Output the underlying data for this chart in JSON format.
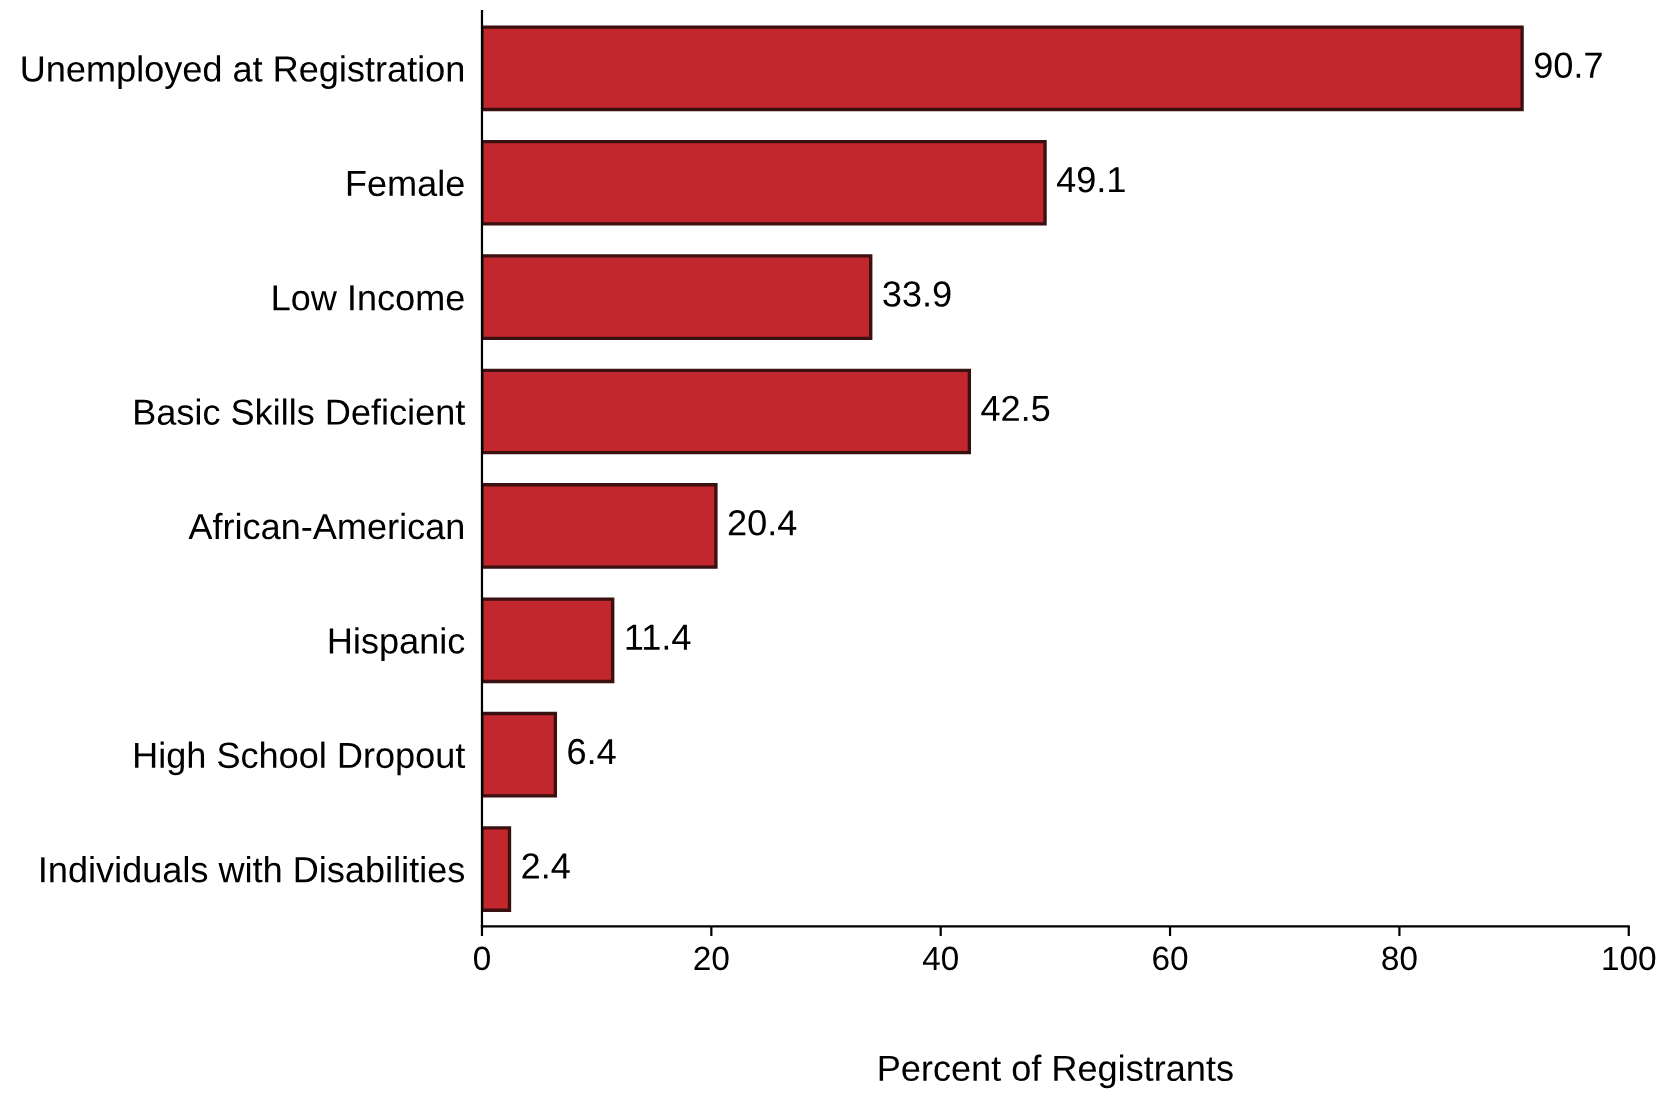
{
  "chart_data": {
    "type": "bar",
    "orientation": "horizontal",
    "xlabel": "Percent of Registrants",
    "categories": [
      "Unemployed at Registration",
      "Female",
      "Low Income",
      "Basic Skills Deficient",
      "African-American",
      "Hispanic",
      "High School Dropout",
      "Individuals with Disabilities"
    ],
    "values": [
      90.7,
      49.1,
      33.9,
      42.5,
      20.4,
      11.4,
      6.4,
      2.4
    ],
    "color": "#c1272d",
    "xlim": [
      0,
      100
    ],
    "xticks": [
      0,
      20,
      40,
      60,
      80,
      100
    ],
    "data_labels": true,
    "grid": false,
    "legend": false
  }
}
